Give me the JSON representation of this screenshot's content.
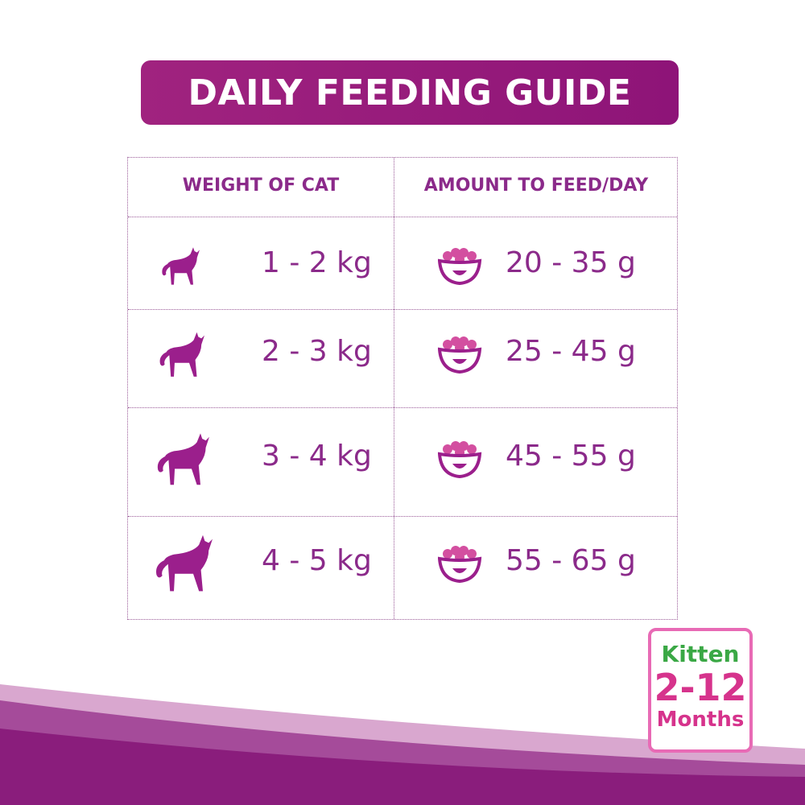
{
  "header": {
    "title": "DAILY FEEDING GUIDE"
  },
  "table": {
    "columns": [
      "WEIGHT OF CAT",
      "AMOUNT TO FEED/DAY"
    ],
    "rows": [
      [
        "1 - 2 kg",
        "20 - 35 g"
      ],
      [
        "2 - 3 kg",
        "25 - 45 g"
      ],
      [
        "3 - 4 kg",
        "45 - 55 g"
      ],
      [
        "4 - 5 kg",
        "55 - 65 g"
      ]
    ]
  },
  "badge": {
    "label": "Kitten",
    "range": "2-12",
    "unit": "Months"
  }
}
